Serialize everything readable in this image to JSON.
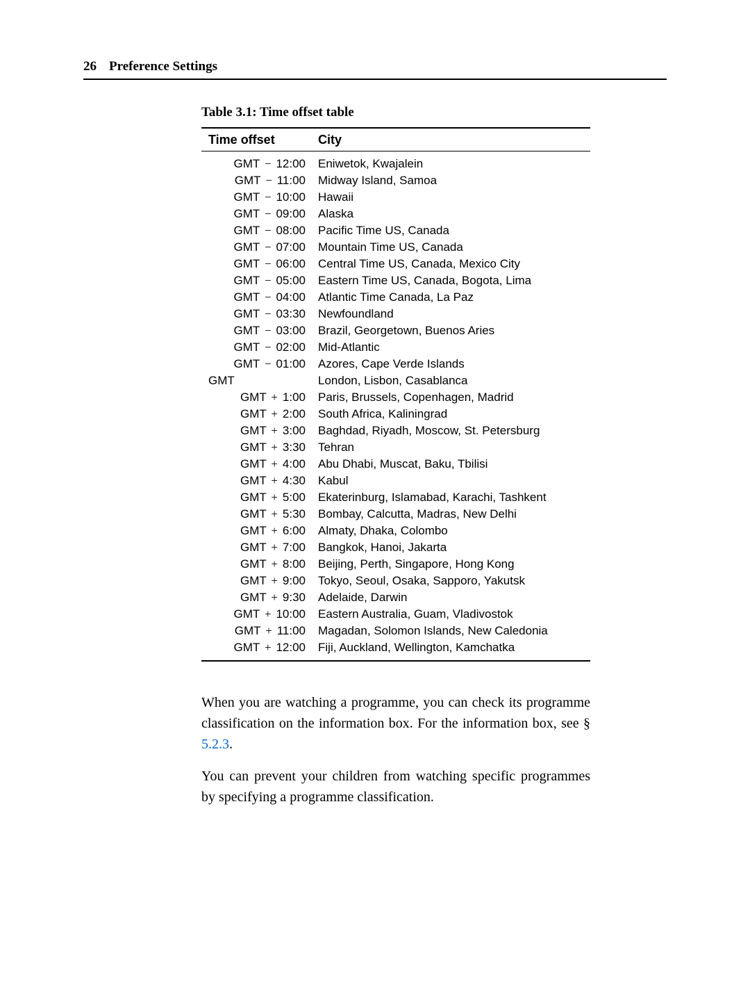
{
  "header": {
    "page_number": "26",
    "section_title": "Preference Settings"
  },
  "table": {
    "caption": "Table 3.1: Time offset table",
    "columns": [
      "Time offset",
      "City"
    ],
    "rows": [
      {
        "prefix": "GMT",
        "sign": "−",
        "time": "12:00",
        "city": "Eniwetok, Kwajalein"
      },
      {
        "prefix": "GMT",
        "sign": "−",
        "time": "11:00",
        "city": "Midway Island, Samoa"
      },
      {
        "prefix": "GMT",
        "sign": "−",
        "time": "10:00",
        "city": "Hawaii"
      },
      {
        "prefix": "GMT",
        "sign": "−",
        "time": "09:00",
        "city": "Alaska"
      },
      {
        "prefix": "GMT",
        "sign": "−",
        "time": "08:00",
        "city": "Pacific Time US, Canada"
      },
      {
        "prefix": "GMT",
        "sign": "−",
        "time": "07:00",
        "city": "Mountain Time US, Canada"
      },
      {
        "prefix": "GMT",
        "sign": "−",
        "time": "06:00",
        "city": "Central Time US, Canada, Mexico City"
      },
      {
        "prefix": "GMT",
        "sign": "−",
        "time": "05:00",
        "city": "Eastern Time US, Canada, Bogota, Lima"
      },
      {
        "prefix": "GMT",
        "sign": "−",
        "time": "04:00",
        "city": "Atlantic Time Canada, La Paz"
      },
      {
        "prefix": "GMT",
        "sign": "−",
        "time": "03:30",
        "city": "Newfoundland"
      },
      {
        "prefix": "GMT",
        "sign": "−",
        "time": "03:00",
        "city": "Brazil, Georgetown, Buenos Aries"
      },
      {
        "prefix": "GMT",
        "sign": "−",
        "time": "02:00",
        "city": "Mid-Atlantic"
      },
      {
        "prefix": "GMT",
        "sign": "−",
        "time": "01:00",
        "city": "Azores, Cape Verde Islands"
      },
      {
        "prefix": "GMT",
        "sign": "",
        "time": "",
        "city": "London, Lisbon, Casablanca"
      },
      {
        "prefix": "GMT",
        "sign": "+",
        "time": "1:00",
        "city": "Paris, Brussels, Copenhagen, Madrid"
      },
      {
        "prefix": "GMT",
        "sign": "+",
        "time": "2:00",
        "city": "South Africa, Kaliningrad"
      },
      {
        "prefix": "GMT",
        "sign": "+",
        "time": "3:00",
        "city": "Baghdad, Riyadh, Moscow, St. Petersburg"
      },
      {
        "prefix": "GMT",
        "sign": "+",
        "time": "3:30",
        "city": "Tehran"
      },
      {
        "prefix": "GMT",
        "sign": "+",
        "time": "4:00",
        "city": "Abu Dhabi, Muscat, Baku, Tbilisi"
      },
      {
        "prefix": "GMT",
        "sign": "+",
        "time": "4:30",
        "city": "Kabul"
      },
      {
        "prefix": "GMT",
        "sign": "+",
        "time": "5:00",
        "city": "Ekaterinburg, Islamabad, Karachi, Tashkent"
      },
      {
        "prefix": "GMT",
        "sign": "+",
        "time": "5:30",
        "city": "Bombay, Calcutta, Madras, New Delhi"
      },
      {
        "prefix": "GMT",
        "sign": "+",
        "time": "6:00",
        "city": "Almaty, Dhaka, Colombo"
      },
      {
        "prefix": "GMT",
        "sign": "+",
        "time": "7:00",
        "city": "Bangkok, Hanoi, Jakarta"
      },
      {
        "prefix": "GMT",
        "sign": "+",
        "time": "8:00",
        "city": "Beijing, Perth, Singapore, Hong Kong"
      },
      {
        "prefix": "GMT",
        "sign": "+",
        "time": "9:00",
        "city": "Tokyo, Seoul, Osaka, Sapporo, Yakutsk"
      },
      {
        "prefix": "GMT",
        "sign": "+",
        "time": "9:30",
        "city": "Adelaide, Darwin"
      },
      {
        "prefix": "GMT",
        "sign": "+",
        "time": "10:00",
        "city": "Eastern Australia, Guam, Vladivostok"
      },
      {
        "prefix": "GMT",
        "sign": "+",
        "time": "11:00",
        "city": "Magadan, Solomon Islands, New Caledonia"
      },
      {
        "prefix": "GMT",
        "sign": "+",
        "time": "12:00",
        "city": "Fiji, Auckland, Wellington, Kamchatka"
      }
    ]
  },
  "paragraphs": {
    "p1_part1": "When you are watching a programme, you can check its programme classification on the information box. For the information box, see § ",
    "p1_link": "5.2.3",
    "p1_part2": ".",
    "p2": "You can prevent your children from watching specific programmes by specifying a programme classification."
  },
  "styling": {
    "background_color": "#ffffff",
    "text_color": "#000000",
    "link_color": "#0066cc",
    "border_color": "#000000",
    "serif_font": "Georgia, Times New Roman, serif",
    "sans_font": "Arial, Helvetica, sans-serif",
    "body_fontsize": 20,
    "table_fontsize": 17,
    "header_fontsize": 19
  }
}
